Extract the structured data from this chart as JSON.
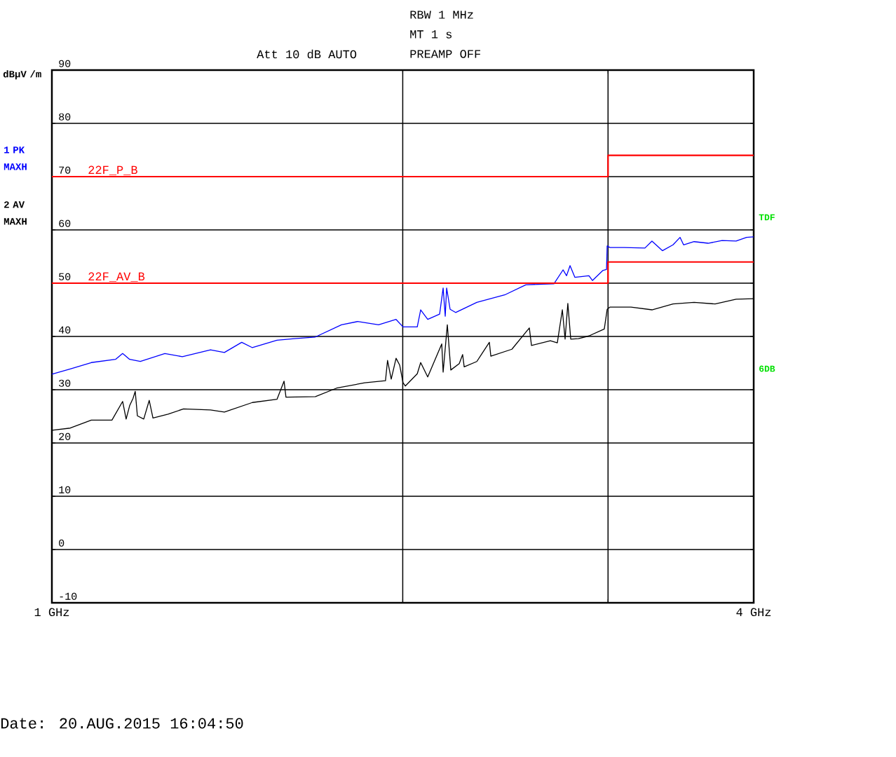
{
  "chart_data": {
    "type": "line",
    "ylabel": "dBµV /m",
    "annotations": [
      "RBW 1 MHz",
      "MT 1 s",
      "Att 10 dB AUTO",
      "PREAMP OFF",
      "TDF",
      "6DB",
      "Date: 20.AUG.2015 16:04:50"
    ],
    "log": "x",
    "xlim": [
      1,
      4
    ],
    "xticks": [
      {
        "value": 1,
        "label": "1 GHz"
      },
      {
        "value": 2,
        "label": null
      },
      {
        "value": 3,
        "label": null
      },
      {
        "value": 4,
        "label": "4 GHz"
      }
    ],
    "ylim": [
      -10,
      90
    ],
    "yticks": [
      -10,
      0,
      10,
      20,
      30,
      40,
      50,
      60,
      70,
      80,
      90
    ],
    "grid": true,
    "legend": "left",
    "series": [
      {
        "name": "1 PK MAXH",
        "type": "line",
        "color": "#0000ff",
        "x": [
          1.0,
          1.037,
          1.081,
          1.134,
          1.15,
          1.166,
          1.191,
          1.25,
          1.294,
          1.368,
          1.406,
          1.455,
          1.486,
          1.56,
          1.615,
          1.683,
          1.772,
          1.829,
          1.907,
          1.974,
          2.001,
          2.058,
          2.072,
          2.101,
          2.151,
          2.166,
          2.175,
          2.181,
          2.196,
          2.22,
          2.315,
          2.446,
          2.55,
          2.696,
          2.745,
          2.764,
          2.783,
          2.81,
          2.889,
          2.909,
          2.97,
          2.991,
          2.995,
          3.011,
          3.096,
          3.227,
          3.272,
          3.341,
          3.411,
          3.459,
          3.483,
          3.556,
          3.656,
          3.758,
          3.864,
          3.945,
          4.0
        ],
        "values": [
          32.9,
          33.9,
          35.1,
          35.7,
          36.8,
          35.7,
          35.3,
          36.8,
          36.2,
          37.5,
          37.0,
          38.9,
          37.9,
          39.3,
          39.6,
          39.9,
          42.2,
          42.8,
          42.2,
          43.2,
          41.8,
          41.8,
          45.0,
          43.2,
          44.2,
          49.1,
          43.8,
          49.1,
          45.1,
          44.5,
          46.4,
          47.8,
          49.7,
          49.9,
          52.5,
          51.4,
          53.3,
          51.1,
          51.4,
          50.5,
          52.4,
          52.6,
          57.0,
          56.7,
          56.7,
          56.6,
          57.9,
          56.1,
          57.2,
          58.6,
          57.2,
          57.8,
          57.5,
          58.0,
          57.9,
          58.6,
          58.7
        ]
      },
      {
        "name": "2 AV MAXH",
        "type": "line",
        "color": "#000000",
        "x": [
          1.0,
          1.037,
          1.081,
          1.126,
          1.15,
          1.158,
          1.166,
          1.174,
          1.179,
          1.184,
          1.199,
          1.212,
          1.221,
          1.258,
          1.297,
          1.368,
          1.406,
          1.486,
          1.56,
          1.582,
          1.588,
          1.683,
          1.755,
          1.855,
          1.933,
          1.941,
          1.955,
          1.974,
          1.988,
          2.001,
          2.01,
          2.058,
          2.072,
          2.101,
          2.16,
          2.166,
          2.184,
          2.199,
          2.236,
          2.251,
          2.258,
          2.315,
          2.373,
          2.38,
          2.481,
          2.568,
          2.579,
          2.677,
          2.714,
          2.741,
          2.756,
          2.771,
          2.787,
          2.83,
          2.889,
          2.978,
          2.995,
          3.011,
          3.139,
          3.272,
          3.411,
          3.556,
          3.707,
          3.864,
          4.0
        ],
        "values": [
          22.4,
          22.8,
          24.3,
          24.3,
          27.8,
          24.5,
          27.0,
          28.4,
          29.7,
          25.1,
          24.5,
          28.0,
          24.7,
          25.4,
          26.4,
          26.2,
          25.8,
          27.6,
          28.2,
          31.6,
          28.6,
          28.7,
          30.3,
          31.3,
          31.7,
          35.5,
          32.0,
          35.9,
          34.6,
          31.3,
          30.7,
          33.0,
          35.1,
          32.4,
          38.6,
          33.3,
          42.2,
          33.7,
          34.9,
          36.6,
          34.3,
          35.3,
          38.9,
          36.3,
          37.6,
          41.6,
          38.3,
          39.2,
          38.8,
          45.0,
          39.5,
          46.2,
          39.5,
          39.6,
          40.1,
          41.4,
          45.1,
          45.5,
          45.5,
          45.0,
          46.1,
          46.4,
          46.1,
          47.0,
          47.1
        ]
      },
      {
        "name": "22F_P_B",
        "type": "step",
        "color": "#ff0000",
        "x": [
          1,
          3,
          4
        ],
        "values": [
          70,
          74,
          74
        ]
      },
      {
        "name": "22F_AV_B",
        "type": "step",
        "color": "#ff0000",
        "x": [
          1,
          3,
          4
        ],
        "values": [
          50,
          54,
          54
        ]
      }
    ]
  }
}
